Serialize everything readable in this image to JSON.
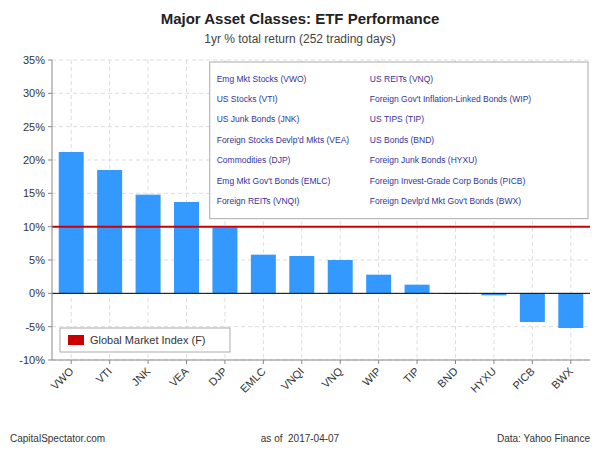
{
  "chart_data": {
    "type": "bar",
    "title": "Major Asset Classes: ETF Performance",
    "subtitle": "1yr % total return (252 trading days)",
    "categories": [
      "VWO",
      "VTI",
      "JNK",
      "VEA",
      "DJP",
      "EMLC",
      "VNQI",
      "VNQ",
      "WIP",
      "TIP",
      "BND",
      "HYXU",
      "PICB",
      "BWX"
    ],
    "values": [
      21.2,
      18.5,
      14.8,
      13.7,
      9.9,
      5.8,
      5.6,
      5.0,
      2.8,
      1.3,
      -0.1,
      -0.3,
      -4.3,
      -5.2
    ],
    "color": "#3399ff",
    "ylim": [
      -10,
      35
    ],
    "yticks": [
      {
        "value": -10,
        "label": "-10%"
      },
      {
        "value": -5,
        "label": "-5%"
      },
      {
        "value": 0,
        "label": "0%"
      },
      {
        "value": 5,
        "label": "5%"
      },
      {
        "value": 10,
        "label": "10%"
      },
      {
        "value": 15,
        "label": "15%"
      },
      {
        "value": 20,
        "label": "20%"
      },
      {
        "value": 25,
        "label": "25%"
      },
      {
        "value": 30,
        "label": "30%"
      },
      {
        "value": 35,
        "label": "35%"
      }
    ],
    "grid": true,
    "legend": "lower left",
    "hline": {
      "name": "Global Market Index (F)",
      "value": 10.0,
      "color": "#cc0000"
    },
    "annotations": [
      "Emg Mkt Stocks (VWO)",
      "US Stocks (VTI)",
      "US Junk Bonds (JNK)",
      "Foreign Stocks Devlp'd Mkts (VEA)",
      "Commodities (DJP)",
      "Emg Mkt Gov't Bonds (EMLC)",
      "Foreign REITs (VNQI)",
      "US REITs (VNQ)",
      "Foreign Gov't Inflation-Linked Bonds (WIP)",
      "US TIPS (TIP)",
      "US Bonds (BND)",
      "Foreign Junk Bonds (HYXU)",
      "Foreign Invest-Grade Corp Bonds (PICB)",
      "Foreign Devlp'd Mkt Gov't Bonds (BWX)"
    ],
    "footer": [
      "CapitalSpectator.com",
      "as of  2017-04-07",
      "Data: Yahoo Finance"
    ]
  }
}
